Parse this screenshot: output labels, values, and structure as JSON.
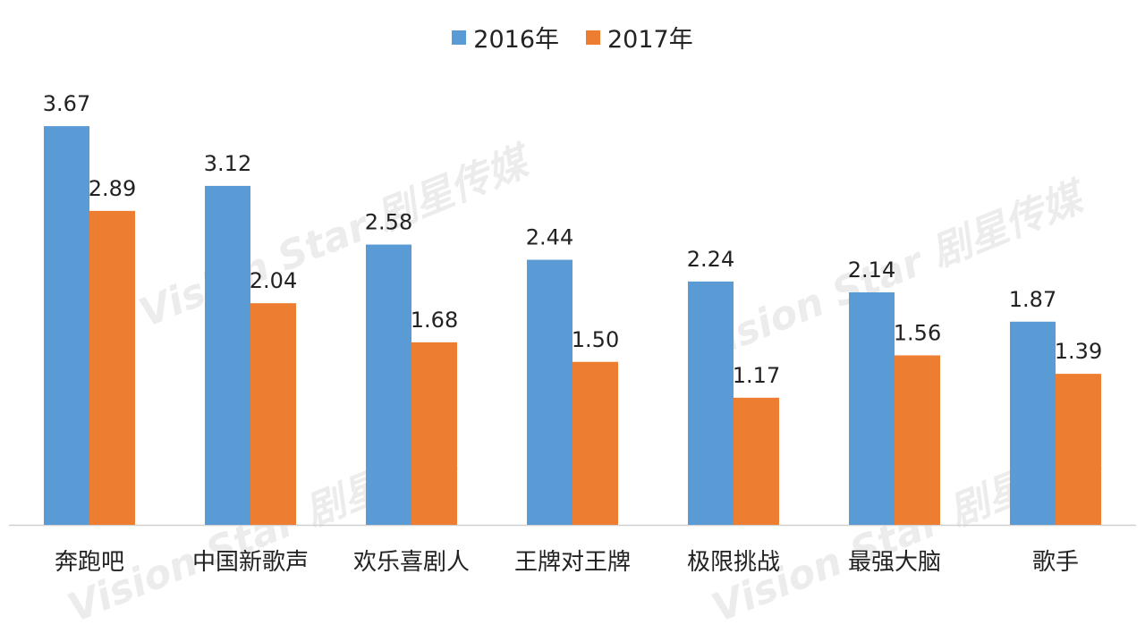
{
  "chart_data": {
    "type": "bar",
    "title": "",
    "xlabel": "",
    "ylabel": "",
    "ylim": [
      0,
      4
    ],
    "grid": false,
    "legend_position": "top-center",
    "categories": [
      "奔跑吧",
      "中国新歌声",
      "欢乐喜剧人",
      "王牌对王牌",
      "极限挑战",
      "最强大脑",
      "歌手"
    ],
    "series": [
      {
        "name": "2016年",
        "color": "#5b9bd5",
        "values": [
          3.67,
          3.12,
          2.58,
          2.44,
          2.24,
          2.14,
          1.87
        ],
        "labels": [
          "3.67",
          "3.12",
          "2.58",
          "2.44",
          "2.24",
          "2.14",
          "1.87"
        ]
      },
      {
        "name": "2017年",
        "color": "#ed7d31",
        "values": [
          2.89,
          2.04,
          1.68,
          1.5,
          1.17,
          1.56,
          1.39
        ],
        "labels": [
          "2.89",
          "2.04",
          "1.68",
          "1.50",
          "1.17",
          "1.56",
          "1.39"
        ]
      }
    ]
  },
  "watermark": {
    "text": "Vision Star 剧星传媒"
  }
}
